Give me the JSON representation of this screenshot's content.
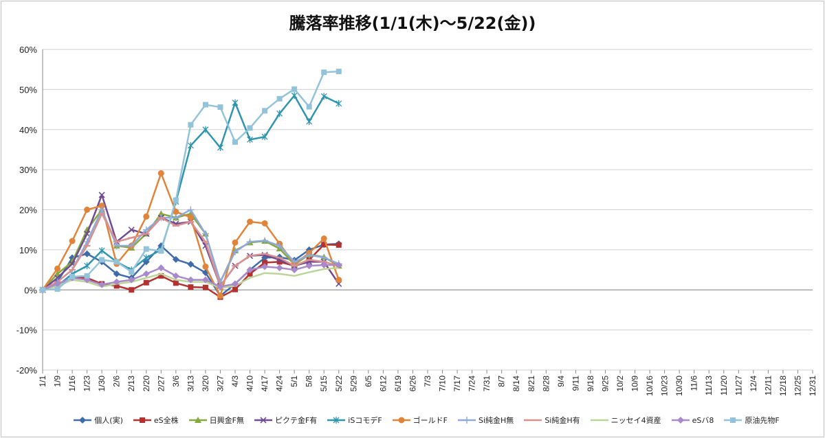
{
  "chart_data": {
    "type": "line",
    "title": "騰落率推移(1/1(木)〜5/22(金))",
    "xlabel": "",
    "ylabel": "",
    "ylim": [
      -0.2,
      0.6
    ],
    "y_ticks": [
      "60%",
      "50%",
      "40%",
      "30%",
      "20%",
      "10%",
      "0%",
      "-10%",
      "-20%"
    ],
    "x_ticks": [
      "1/1",
      "1/9",
      "1/16",
      "1/23",
      "1/30",
      "2/6",
      "2/13",
      "2/20",
      "2/27",
      "3/6",
      "3/13",
      "3/20",
      "3/27",
      "4/3",
      "4/10",
      "4/17",
      "4/24",
      "5/1",
      "5/8",
      "5/15",
      "5/22",
      "5/29",
      "6/5",
      "6/12",
      "6/19",
      "6/26",
      "7/3",
      "7/10",
      "7/17",
      "7/24",
      "7/31",
      "8/7",
      "8/14",
      "8/21",
      "8/28",
      "9/4",
      "9/11",
      "9/18",
      "9/25",
      "10/2",
      "10/9",
      "10/16",
      "10/23",
      "10/30",
      "11/6",
      "11/13",
      "11/20",
      "11/27",
      "12/4",
      "12/11",
      "12/18",
      "12/25",
      "12/31"
    ],
    "grid": true,
    "legend_position": "bottom",
    "series": [
      {
        "name": "個人(実)",
        "color": "#3F6BA8",
        "marker": "diamond",
        "values": [
          0,
          0.02,
          0.08,
          0.09,
          0.07,
          0.04,
          0.03,
          0.07,
          0.11,
          0.076,
          0.064,
          0.043,
          -0.015,
          0.015,
          0.05,
          0.08,
          0.082,
          0.074,
          0.1,
          0.113,
          0.115
        ]
      },
      {
        "name": "eS全株",
        "color": "#B3322F",
        "marker": "square",
        "values": [
          0,
          0.01,
          0.03,
          0.03,
          0.015,
          0.01,
          0,
          0.018,
          0.035,
          0.017,
          0.007,
          0.006,
          -0.018,
          0.001,
          0.04,
          0.068,
          0.07,
          0.06,
          0.075,
          0.113,
          0.112
        ]
      },
      {
        "name": "日興金F無",
        "color": "#86A83F",
        "marker": "triangle",
        "values": [
          0,
          0.04,
          0.07,
          0.15,
          0.2,
          0.11,
          0.105,
          0.14,
          0.19,
          0.18,
          0.19,
          0.14,
          0.02,
          0.098,
          0.118,
          0.122,
          0.103,
          0.063,
          0.088,
          0.082,
          0.06
        ]
      },
      {
        "name": "ピクテ金F有",
        "color": "#6F4A92",
        "marker": "x",
        "values": [
          0,
          0.03,
          0.065,
          0.14,
          0.237,
          0.12,
          0.15,
          0.14,
          0.18,
          0.165,
          0.17,
          0.11,
          0.01,
          0.06,
          0.085,
          0.087,
          0.075,
          0.06,
          0.07,
          0.07,
          0.015
        ]
      },
      {
        "name": "iSコモデF",
        "color": "#2F95AF",
        "marker": "star",
        "values": [
          0,
          0.01,
          0.04,
          0.06,
          0.098,
          0.07,
          0.05,
          0.08,
          0.1,
          0.22,
          0.36,
          0.4,
          0.355,
          0.467,
          0.375,
          0.382,
          0.44,
          0.485,
          0.42,
          0.483,
          0.465
        ]
      },
      {
        "name": "ゴールドF",
        "color": "#E0843A",
        "marker": "circle",
        "values": [
          0,
          0.053,
          0.122,
          0.2,
          0.21,
          0.065,
          0.11,
          0.183,
          0.291,
          0.195,
          0.181,
          0.058,
          -0.015,
          0.118,
          0.17,
          0.166,
          0.115,
          0.065,
          0.092,
          0.128,
          0.025
        ]
      },
      {
        "name": "Si純金H無",
        "color": "#8EA9DA",
        "marker": "plus",
        "values": [
          0,
          0.02,
          0.05,
          0.12,
          0.2,
          0.11,
          0.11,
          0.15,
          0.18,
          0.18,
          0.2,
          0.14,
          0.02,
          0.095,
          0.12,
          0.123,
          0.11,
          0.07,
          0.087,
          0.081,
          0.065
        ]
      },
      {
        "name": "Si純金H有",
        "color": "#D9918F",
        "marker": "dash",
        "values": [
          0,
          0.02,
          0.05,
          0.11,
          0.19,
          0.12,
          0.13,
          0.14,
          0.18,
          0.16,
          0.17,
          0.12,
          0.01,
          0.06,
          0.085,
          0.09,
          0.08,
          0.06,
          0.075,
          0.07,
          0.06
        ]
      },
      {
        "name": "ニッセイ4資産",
        "color": "#BCD49A",
        "marker": "none",
        "values": [
          0,
          0.01,
          0.025,
          0.02,
          0.008,
          0.015,
          0.02,
          0.03,
          0.04,
          0.025,
          0.02,
          0.02,
          0.005,
          0.01,
          0.03,
          0.042,
          0.04,
          0.035,
          0.044,
          0.052,
          0.055
        ]
      },
      {
        "name": "eSバ8",
        "color": "#A889C9",
        "marker": "diamond",
        "values": [
          0,
          0.015,
          0.03,
          0.025,
          0.013,
          0.02,
          0.025,
          0.04,
          0.055,
          0.035,
          0.025,
          0.025,
          0.008,
          0.015,
          0.05,
          0.058,
          0.055,
          0.05,
          0.06,
          0.062,
          0.062
        ]
      },
      {
        "name": "原油先物F",
        "color": "#93C3D9",
        "marker": "square",
        "values": [
          0,
          0.002,
          0.033,
          0.035,
          0.075,
          0.07,
          0.045,
          0.102,
          0.097,
          0.224,
          0.412,
          0.462,
          0.456,
          0.369,
          0.404,
          0.447,
          0.477,
          0.501,
          0.457,
          0.543,
          0.545
        ]
      }
    ]
  }
}
